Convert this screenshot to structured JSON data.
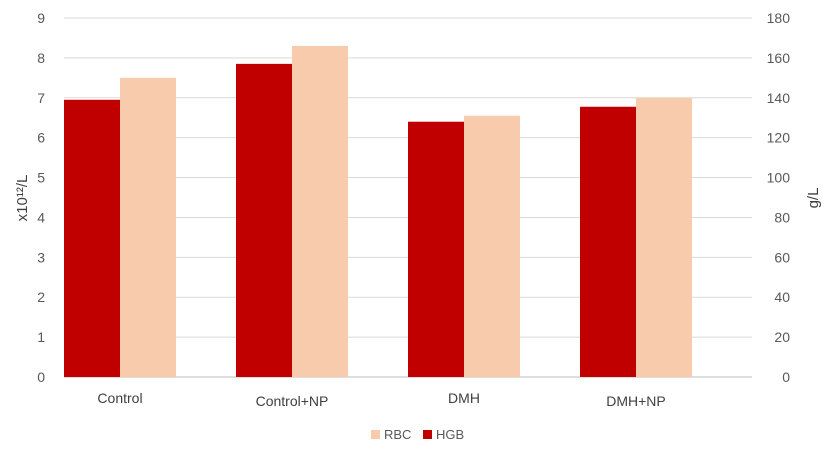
{
  "chart_data": {
    "type": "bar",
    "categories": [
      "Control",
      "Control+NP",
      "DMH",
      "DMH+NP"
    ],
    "series": [
      {
        "name": "HGB",
        "axis": "right",
        "color": "#c00000",
        "values": [
          139,
          157,
          128,
          135.5
        ]
      },
      {
        "name": "RBC",
        "axis": "left",
        "color": "#f8cbad",
        "values": [
          7.5,
          8.3,
          6.55,
          7.0
        ]
      }
    ],
    "ylabel_left": "x10¹²/L",
    "ylabel_right": "g/L",
    "ylim_left": [
      0,
      9
    ],
    "yticks_left": [
      "0",
      "1",
      "2",
      "3",
      "4",
      "5",
      "6",
      "7",
      "8",
      "9"
    ],
    "ylim_right": [
      0,
      180
    ],
    "yticks_right": [
      "0",
      "20",
      "40",
      "60",
      "80",
      "100",
      "120",
      "140",
      "160",
      "180"
    ],
    "legend": {
      "position": "bottom",
      "entries": [
        "RBC",
        "HGB"
      ]
    },
    "grid": true
  }
}
